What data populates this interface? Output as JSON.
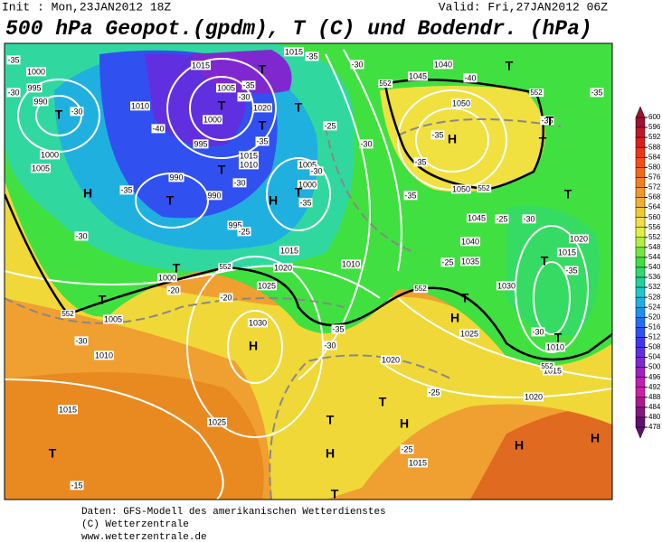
{
  "header": {
    "init": "Init : Mon,23JAN2012 18Z",
    "valid": "Valid: Fri,27JAN2012 06Z",
    "title": "500 hPa Geopot.(gpdm), T (C) und Bodendr. (hPa)"
  },
  "legend": {
    "ticks": [
      600,
      596,
      592,
      588,
      584,
      580,
      576,
      572,
      568,
      564,
      560,
      556,
      552,
      548,
      544,
      540,
      536,
      532,
      528,
      524,
      520,
      516,
      512,
      508,
      504,
      500,
      496,
      492,
      488,
      484,
      480,
      478
    ],
    "colors": [
      "#a01030",
      "#c01828",
      "#d82020",
      "#e83818",
      "#f05018",
      "#f06818",
      "#f08020",
      "#f09828",
      "#f0b030",
      "#f0c838",
      "#f0e040",
      "#e0f040",
      "#b0f040",
      "#70e840",
      "#40e040",
      "#30d870",
      "#20d0a0",
      "#20c8c8",
      "#20b0e0",
      "#2090f0",
      "#2070f0",
      "#3050f0",
      "#4038f0",
      "#6030e0",
      "#8028d0",
      "#a020c0",
      "#c020b0",
      "#d020a0",
      "#b01890",
      "#801880",
      "#601070"
    ]
  },
  "map": {
    "pressure_labels": [
      1000,
      995,
      990,
      1000,
      1005,
      1010,
      1015,
      1005,
      1000,
      995,
      1015,
      1010,
      990,
      990,
      995,
      1020,
      1005,
      1000,
      1015,
      1020,
      1010,
      1025,
      1000,
      1005,
      1010,
      1030,
      1025,
      1015,
      1020,
      1015,
      1040,
      1045,
      1050,
      1050,
      1045,
      1040,
      1035,
      1030,
      1025,
      1020,
      1015,
      1010,
      1015,
      1020,
      1015
    ],
    "temperature_labels": [
      -35,
      -30,
      -30,
      -40,
      -35,
      -30,
      -35,
      -30,
      -40,
      -35,
      -35,
      -30,
      -25,
      -30,
      -35,
      -30,
      -35,
      -30,
      -35,
      -25,
      -30,
      -25,
      -35,
      -25,
      -35,
      -30,
      -35,
      -30,
      -25,
      -25,
      -15,
      -20,
      -20,
      -30,
      -35,
      -35
    ],
    "height_labels": [
      552,
      552,
      552,
      552,
      552,
      552,
      552
    ],
    "centers": [
      "T",
      "T",
      "T",
      "T",
      "T",
      "T",
      "T",
      "T",
      "T",
      "T",
      "T",
      "T",
      "T",
      "T",
      "T",
      "T",
      "T",
      "T",
      "T",
      "T",
      "T",
      "H",
      "H",
      "H",
      "H",
      "H",
      "H",
      "H",
      "H",
      "H"
    ]
  },
  "footer": {
    "lines": [
      "Daten: GFS-Modell des amerikanischen Wetterdienstes",
      "(C) Wetterzentrale",
      "www.wetterzentrale.de"
    ]
  }
}
